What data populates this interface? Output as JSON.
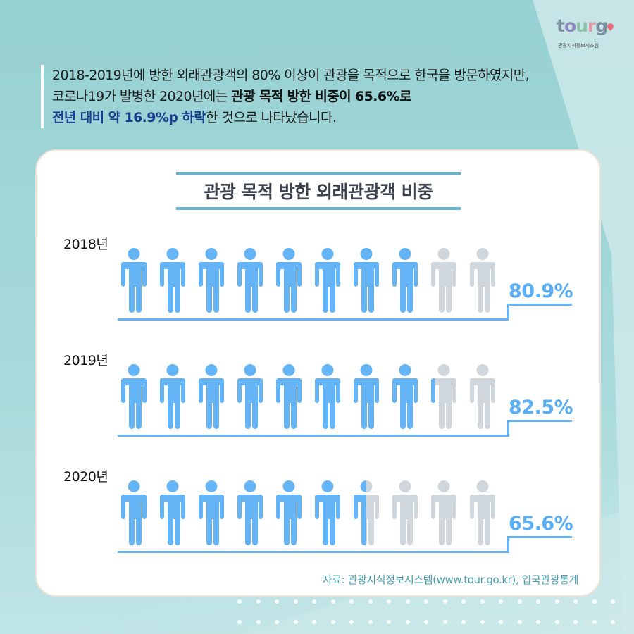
{
  "logo": {
    "word_letters": [
      {
        "char": "t",
        "color": "#7c8ea0"
      },
      {
        "char": "o",
        "color": "#8e86bd"
      },
      {
        "char": "u",
        "color": "#8ac1a4"
      },
      {
        "char": "r",
        "color": "#e79aa6"
      },
      {
        "char": "g",
        "color": "#7c8ea0"
      }
    ],
    "subtitle": "관광지식정보시스템",
    "pin_color": "#f06a7a"
  },
  "intro": {
    "line1": "2018-2019년에 방한 외래관광객의 80% 이상이 관광을 목적으로 한국을 방문하였지만,",
    "line2_plain": "코로나19가 발병한 2020년에는 ",
    "line2_bold": "관광 목적 방한 비중이 65.6%로",
    "line3_blue": "전년 대비 약 16.9%p 하락",
    "line3_plain": "한 것으로 나타났습니다."
  },
  "chart_data": {
    "type": "bar",
    "subtype": "pictogram",
    "title": "관광 목적 방한 외래관광객 비중",
    "categories": [
      "2018년",
      "2019년",
      "2020년"
    ],
    "values": [
      80.9,
      82.5,
      65.6
    ],
    "value_labels": [
      "80.9%",
      "82.5%",
      "65.6%"
    ],
    "unit": "%",
    "icons_per_row": 10,
    "icon_value": 10,
    "colors": {
      "filled": "#64b4f6",
      "empty": "#d0d7dc",
      "label": "#5aaef4"
    },
    "source": "자료: 관광지식정보시스템(www.tour.go.kr), 입국관광통계"
  },
  "rows": [
    {
      "year": "2018년",
      "pct": "80.9%",
      "fills": [
        1,
        1,
        1,
        1,
        1,
        1,
        1,
        1,
        0,
        0
      ]
    },
    {
      "year": "2019년",
      "pct": "82.5%",
      "fills": [
        1,
        1,
        1,
        1,
        1,
        1,
        1,
        1,
        0.15,
        0
      ]
    },
    {
      "year": "2020년",
      "pct": "65.6%",
      "fills": [
        1,
        1,
        1,
        1,
        1,
        1,
        0.5,
        0,
        0,
        0
      ]
    }
  ]
}
